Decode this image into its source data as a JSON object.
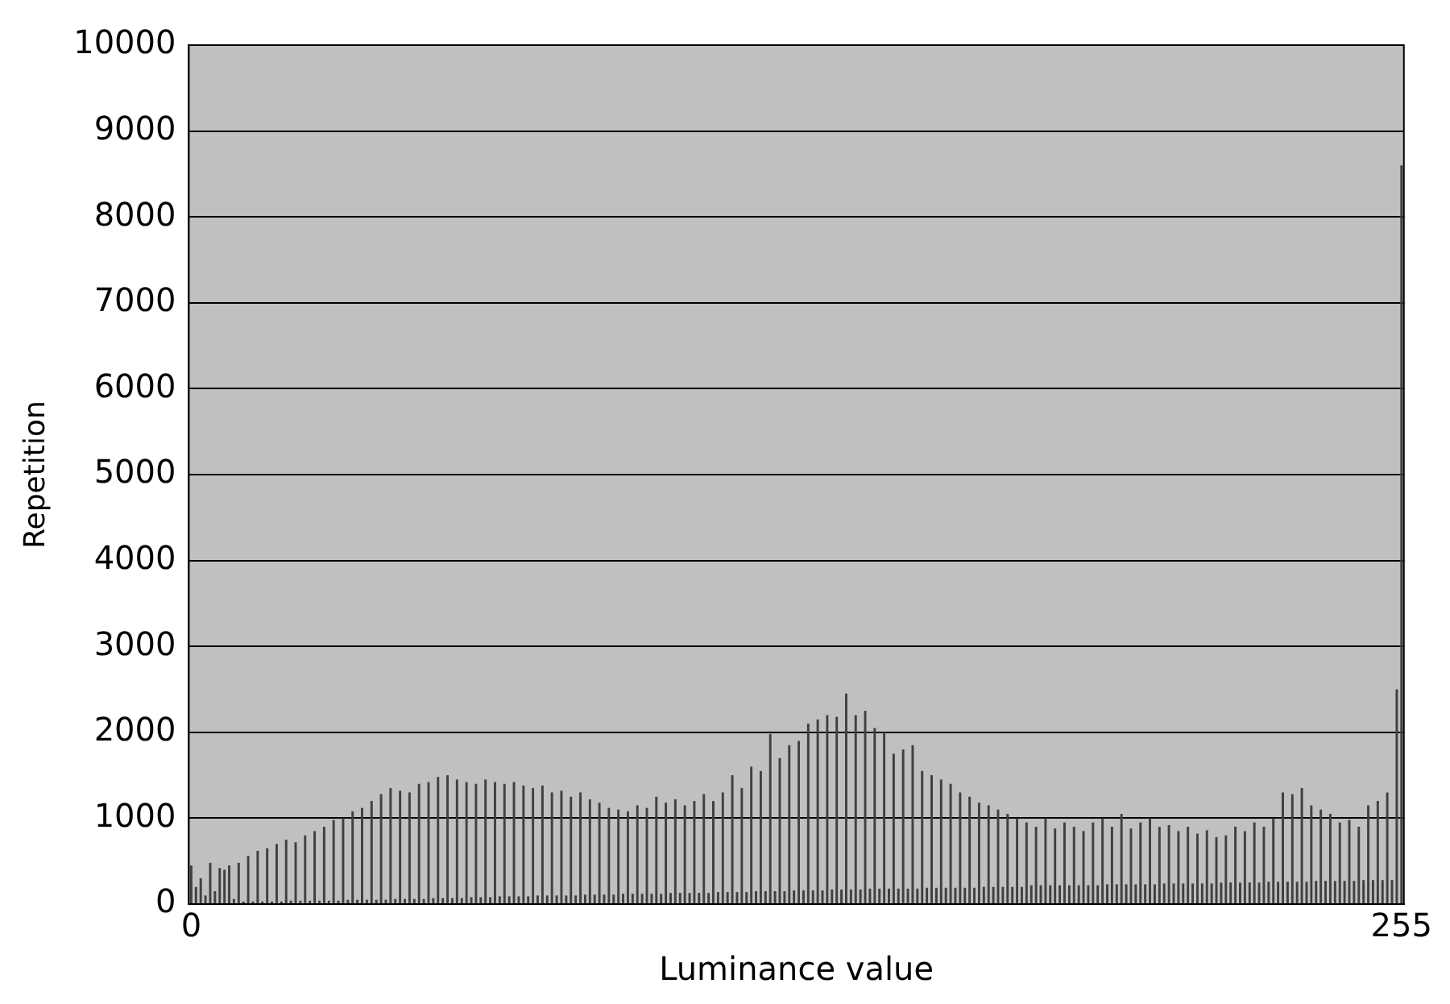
{
  "chart_data": {
    "type": "bar",
    "xlabel": "Luminance value",
    "ylabel": "Repetition",
    "categories": [
      "0",
      null,
      null,
      null,
      null,
      null,
      null,
      null,
      null,
      null,
      null,
      null,
      null,
      null,
      null,
      null,
      null,
      null,
      null,
      null,
      null,
      null,
      null,
      null,
      null,
      null,
      null,
      null,
      null,
      null,
      null,
      null,
      null,
      null,
      null,
      null,
      null,
      null,
      null,
      null,
      null,
      null,
      null,
      null,
      null,
      null,
      null,
      null,
      null,
      null,
      null,
      null,
      null,
      null,
      null,
      null,
      null,
      null,
      null,
      null,
      null,
      null,
      null,
      null,
      null,
      null,
      null,
      null,
      null,
      null,
      null,
      null,
      null,
      null,
      null,
      null,
      null,
      null,
      null,
      null,
      null,
      null,
      null,
      null,
      null,
      null,
      null,
      null,
      null,
      null,
      null,
      null,
      null,
      null,
      null,
      null,
      null,
      null,
      null,
      null,
      null,
      null,
      null,
      null,
      null,
      null,
      null,
      null,
      null,
      null,
      null,
      null,
      null,
      null,
      null,
      null,
      null,
      null,
      null,
      null,
      null,
      null,
      null,
      null,
      null,
      null,
      null,
      null,
      null,
      null,
      null,
      null,
      null,
      null,
      null,
      null,
      null,
      null,
      null,
      null,
      null,
      null,
      null,
      null,
      null,
      null,
      null,
      null,
      null,
      null,
      null,
      null,
      null,
      null,
      null,
      null,
      null,
      null,
      null,
      null,
      null,
      null,
      null,
      null,
      null,
      null,
      null,
      null,
      null,
      null,
      null,
      null,
      null,
      null,
      null,
      null,
      null,
      null,
      null,
      null,
      null,
      null,
      null,
      null,
      null,
      null,
      null,
      null,
      null,
      null,
      null,
      null,
      null,
      null,
      null,
      null,
      null,
      null,
      null,
      null,
      null,
      null,
      null,
      null,
      null,
      null,
      null,
      null,
      null,
      null,
      null,
      null,
      null,
      null,
      null,
      null,
      null,
      null,
      null,
      null,
      null,
      null,
      null,
      null,
      null,
      null,
      null,
      null,
      null,
      null,
      null,
      null,
      null,
      null,
      null,
      null,
      null,
      null,
      null,
      null,
      null,
      null,
      null,
      null,
      null,
      null,
      null,
      null,
      null,
      null,
      null,
      null,
      null,
      null,
      null,
      "255"
    ],
    "values": [
      450,
      200,
      300,
      100,
      480,
      150,
      420,
      400,
      450,
      60,
      480,
      30,
      560,
      30,
      620,
      30,
      650,
      30,
      700,
      30,
      750,
      40,
      720,
      40,
      800,
      40,
      850,
      40,
      900,
      40,
      980,
      40,
      1000,
      50,
      1080,
      50,
      1120,
      50,
      1200,
      50,
      1280,
      50,
      1350,
      60,
      1320,
      60,
      1300,
      60,
      1400,
      60,
      1420,
      70,
      1480,
      70,
      1500,
      70,
      1450,
      70,
      1420,
      80,
      1400,
      80,
      1450,
      80,
      1420,
      90,
      1400,
      90,
      1420,
      90,
      1380,
      90,
      1350,
      100,
      1380,
      100,
      1300,
      100,
      1320,
      100,
      1250,
      100,
      1300,
      110,
      1220,
      110,
      1180,
      110,
      1120,
      110,
      1100,
      120,
      1080,
      120,
      1150,
      120,
      1120,
      120,
      1250,
      120,
      1180,
      130,
      1220,
      130,
      1150,
      130,
      1200,
      130,
      1280,
      130,
      1200,
      140,
      1300,
      140,
      1500,
      140,
      1350,
      140,
      1600,
      150,
      1550,
      150,
      1980,
      150,
      1700,
      150,
      1850,
      160,
      1900,
      160,
      2100,
      160,
      2150,
      160,
      2200,
      170,
      2180,
      170,
      2450,
      170,
      2200,
      170,
      2250,
      180,
      2050,
      180,
      2000,
      180,
      1750,
      180,
      1800,
      180,
      1850,
      180,
      1550,
      190,
      1500,
      190,
      1450,
      190,
      1400,
      190,
      1300,
      190,
      1250,
      190,
      1180,
      200,
      1150,
      200,
      1100,
      200,
      1050,
      200,
      1000,
      200,
      950,
      220,
      900,
      220,
      1000,
      220,
      880,
      220,
      950,
      220,
      900,
      220,
      850,
      220,
      950,
      220,
      1000,
      230,
      900,
      230,
      1050,
      230,
      880,
      230,
      950,
      230,
      1000,
      230,
      900,
      240,
      920,
      240,
      850,
      240,
      900,
      240,
      820,
      240,
      860,
      240,
      780,
      250,
      800,
      250,
      900,
      250,
      850,
      250,
      950,
      250,
      900,
      260,
      1000,
      260,
      1300,
      260,
      1280,
      260,
      1350,
      260,
      1150,
      270,
      1100,
      270,
      1050,
      270,
      950,
      270,
      980,
      270,
      900,
      280,
      1150,
      280,
      1200,
      280,
      1300,
      280,
      2500,
      8600
    ],
    "color": "#404040",
    "ylim": [
      0,
      10000
    ],
    "yticks": [
      0,
      1000,
      2000,
      3000,
      4000,
      5000,
      6000,
      7000,
      8000,
      9000,
      10000
    ],
    "grid": "y",
    "legend": false
  }
}
